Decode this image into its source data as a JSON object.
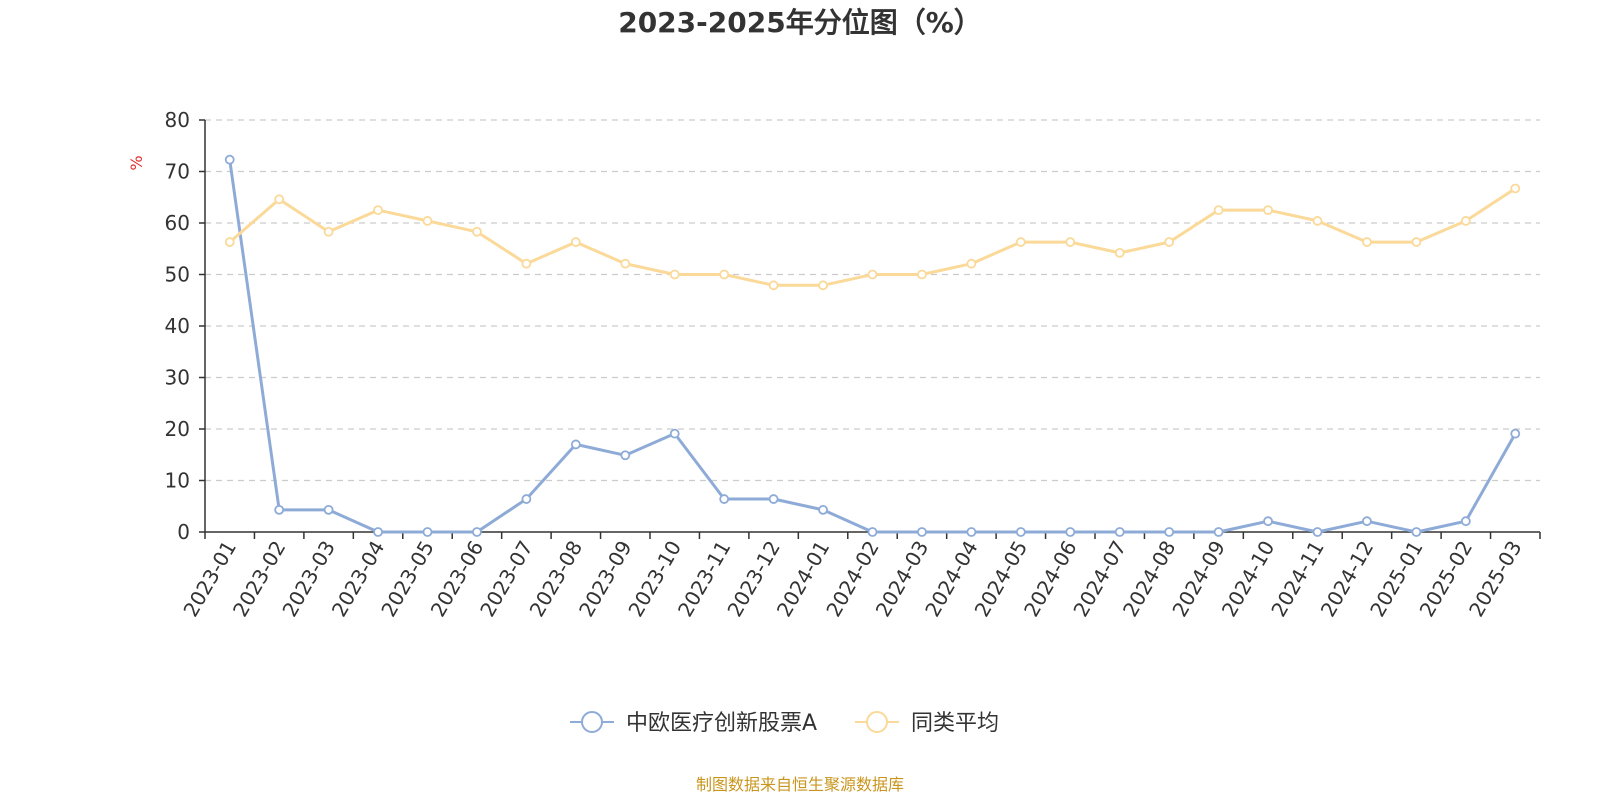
{
  "chart_data": {
    "type": "line",
    "title": "2023-2025年分位图（%）",
    "ylabel": "%",
    "ylim": [
      0,
      80
    ],
    "yticks": [
      0,
      10,
      20,
      30,
      40,
      50,
      60,
      70,
      80
    ],
    "grid": true,
    "legend_position": "bottom",
    "x": [
      "2023-01",
      "2023-02",
      "2023-03",
      "2023-04",
      "2023-05",
      "2023-06",
      "2023-07",
      "2023-08",
      "2023-09",
      "2023-10",
      "2023-11",
      "2023-12",
      "2024-01",
      "2024-02",
      "2024-03",
      "2024-04",
      "2024-05",
      "2024-06",
      "2024-07",
      "2024-08",
      "2024-09",
      "2024-10",
      "2024-11",
      "2024-12",
      "2025-01",
      "2025-02",
      "2025-03"
    ],
    "series": [
      {
        "name": "中欧医疗创新股票A",
        "color": "#8eabd8",
        "values": [
          72.3,
          4.3,
          4.3,
          0,
          0,
          0,
          6.4,
          17.0,
          14.9,
          19.1,
          6.4,
          6.4,
          4.3,
          0,
          0,
          0,
          0,
          0,
          0,
          0,
          0,
          2.1,
          0,
          2.1,
          0,
          2.1,
          19.1
        ]
      },
      {
        "name": "同类平均",
        "color": "#fad999",
        "values": [
          56.3,
          64.6,
          58.3,
          62.5,
          60.4,
          58.3,
          52.1,
          56.3,
          52.1,
          50.0,
          50.0,
          47.9,
          47.9,
          50.0,
          50.0,
          52.1,
          56.3,
          56.3,
          54.2,
          56.3,
          62.5,
          62.5,
          60.4,
          56.3,
          56.3,
          60.4,
          66.7
        ]
      }
    ],
    "source": "制图数据来自恒生聚源数据库"
  }
}
